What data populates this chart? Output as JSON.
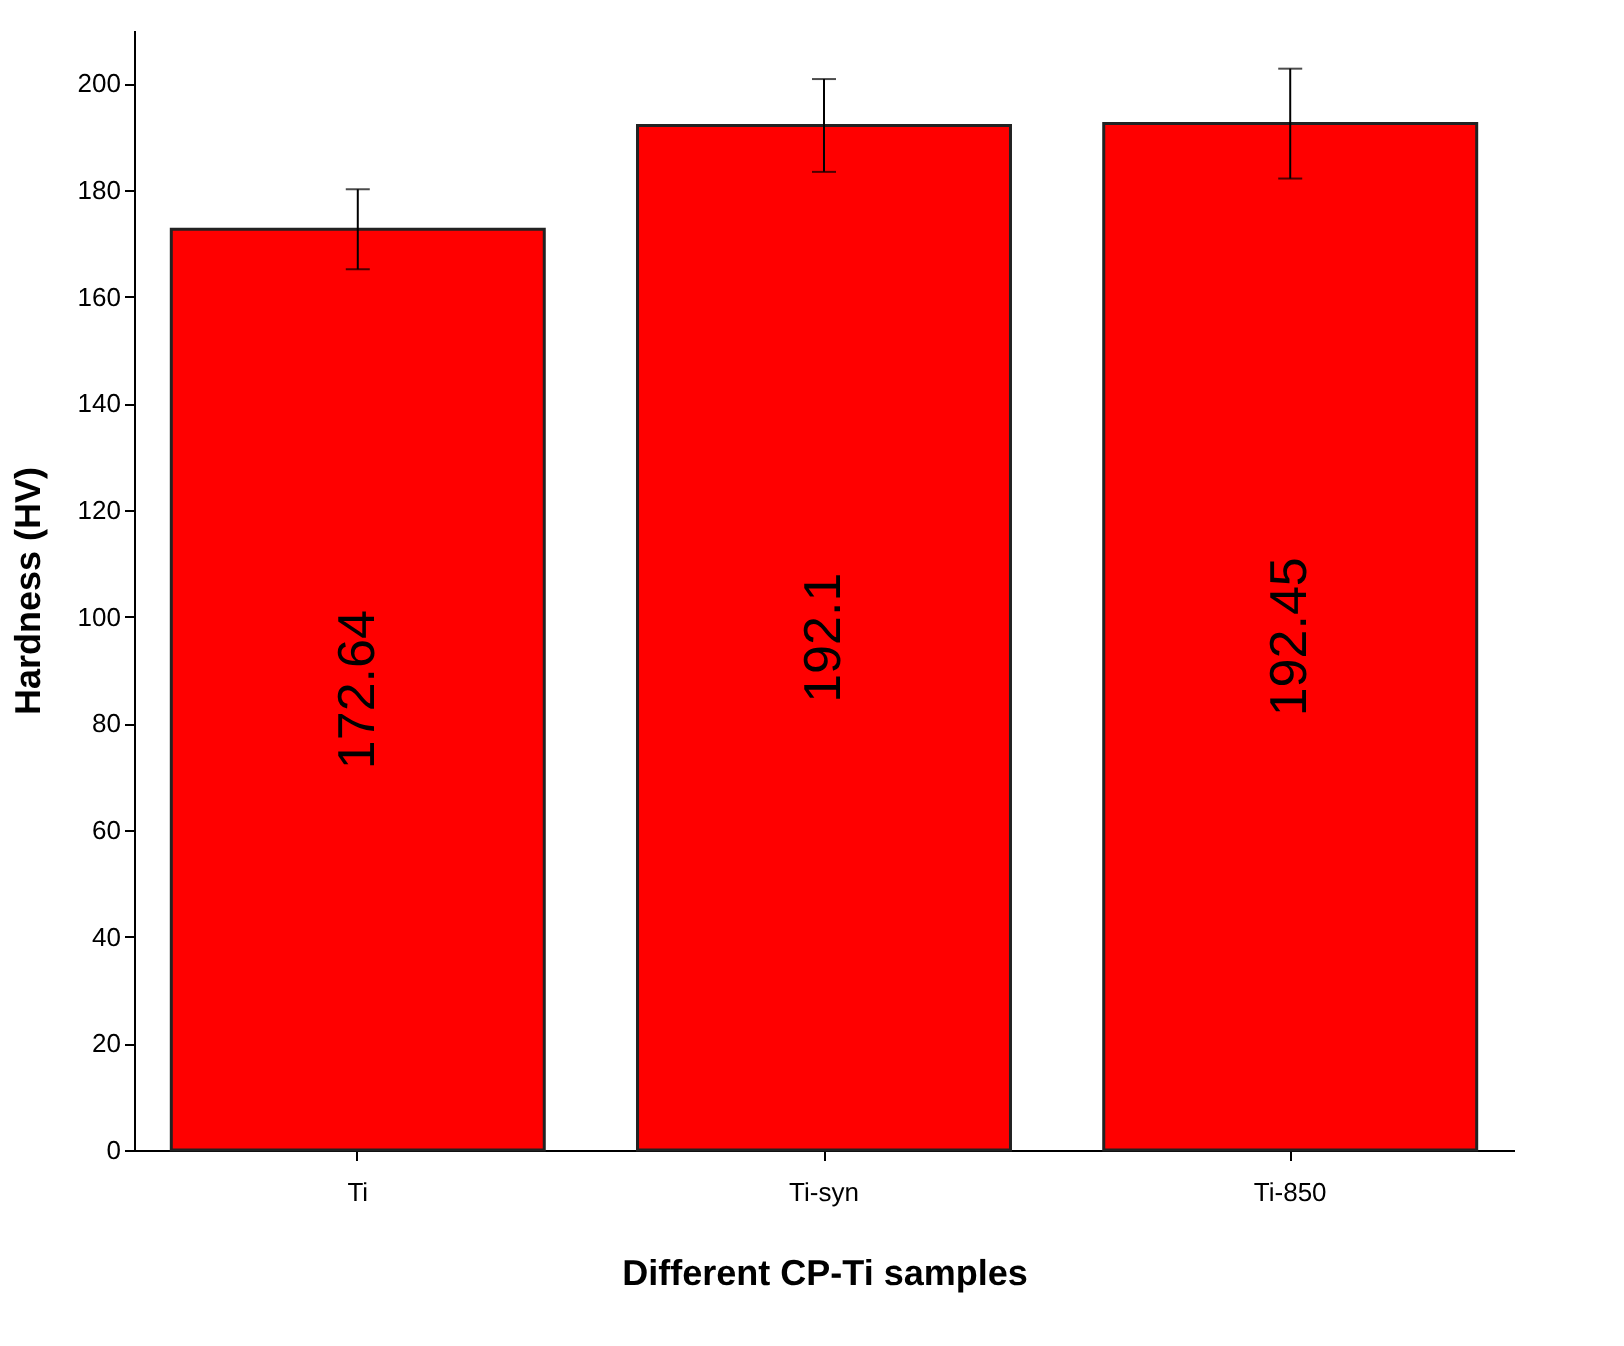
{
  "chart_data": {
    "type": "bar",
    "xlabel": "Different CP-Ti samples",
    "ylabel": "Hardness (HV)",
    "categories": [
      "Ti",
      "Ti-syn",
      "Ti-850"
    ],
    "values": [
      172.64,
      192.1,
      192.45
    ],
    "errors": [
      7.5,
      8.7,
      10.3
    ],
    "color": "#ff0000",
    "ylim": [
      0,
      210
    ],
    "yticks": [
      0,
      20,
      40,
      60,
      80,
      100,
      120,
      140,
      160,
      180,
      200
    ],
    "data_labels": true,
    "grid": false
  }
}
